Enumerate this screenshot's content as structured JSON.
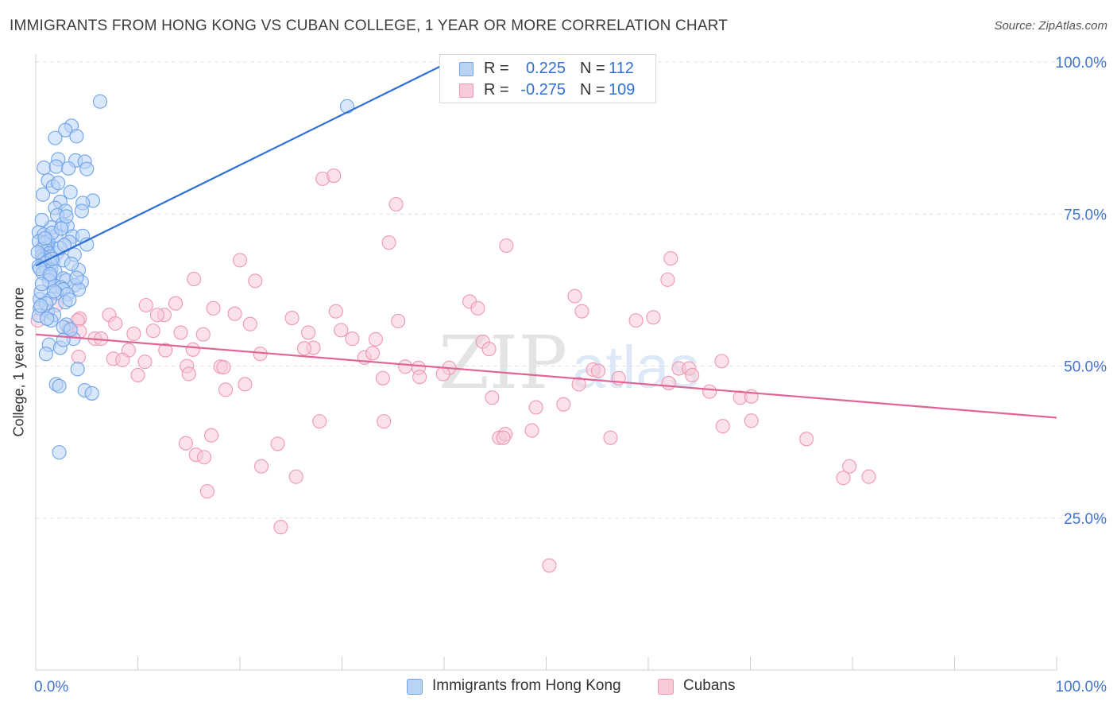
{
  "title": "IMMIGRANTS FROM HONG KONG VS CUBAN COLLEGE, 1 YEAR OR MORE CORRELATION CHART",
  "source": "Source: ZipAtlas.com",
  "watermark": {
    "zip": "ZIP",
    "atlas": "atlas"
  },
  "legend_top": {
    "rows": [
      {
        "r_label": "R =",
        "r_value": "0.225",
        "n_label": "N =",
        "n_value": "112",
        "color": "#6ea3e8",
        "fill": "#b9d3f5"
      },
      {
        "r_label": "R =",
        "r_value": "-0.275",
        "n_label": "N =",
        "n_value": "109",
        "color": "#ee97b1",
        "fill": "#f8cad8"
      }
    ]
  },
  "legend_bottom": {
    "series": [
      {
        "label": "Immigrants from Hong Kong",
        "color": "#6ea3e8",
        "fill": "#b9d3f5"
      },
      {
        "label": "Cubans",
        "color": "#ee97b1",
        "fill": "#f8cad8"
      }
    ]
  },
  "chart_data": {
    "type": "scatter",
    "title": "IMMIGRANTS FROM HONG KONG VS CUBAN COLLEGE, 1 YEAR OR MORE CORRELATION CHART",
    "xlabel": "",
    "ylabel": "College, 1 year or more",
    "xlim": [
      0,
      100
    ],
    "ylim": [
      0,
      100
    ],
    "x_tick_labels": [
      "0.0%",
      "100.0%"
    ],
    "y_tick_labels": [
      "25.0%",
      "50.0%",
      "75.0%",
      "100.0%"
    ],
    "y_ticks": [
      25,
      50,
      75,
      100
    ],
    "grid": true,
    "series": [
      {
        "name": "Immigrants from Hong Kong",
        "color": "#2f6fd6",
        "fill": "#b9d3f5",
        "stroke": "#6ea3e8",
        "trend": {
          "x1": 0,
          "y1": 66.5,
          "x2": 40.5,
          "y2": 100.0
        },
        "points": [
          [
            6.3,
            93.5
          ],
          [
            30.5,
            92.7
          ],
          [
            3.5,
            89.5
          ],
          [
            2.9,
            88.8
          ],
          [
            1.9,
            87.5
          ],
          [
            4.0,
            87.8
          ],
          [
            2.2,
            84.0
          ],
          [
            3.9,
            83.8
          ],
          [
            4.8,
            83.6
          ],
          [
            0.8,
            82.6
          ],
          [
            2.0,
            82.8
          ],
          [
            3.2,
            82.5
          ],
          [
            5.0,
            82.4
          ],
          [
            1.2,
            80.5
          ],
          [
            3.4,
            78.6
          ],
          [
            1.7,
            79.5
          ],
          [
            0.7,
            78.2
          ],
          [
            5.6,
            77.2
          ],
          [
            2.4,
            77.0
          ],
          [
            4.6,
            76.8
          ],
          [
            1.9,
            76.0
          ],
          [
            4.5,
            75.5
          ],
          [
            2.9,
            75.5
          ],
          [
            2.1,
            74.8
          ],
          [
            2.6,
            73.3
          ],
          [
            1.5,
            72.8
          ],
          [
            3.1,
            73.0
          ],
          [
            0.3,
            72.0
          ],
          [
            0.8,
            71.6
          ],
          [
            2.0,
            71.5
          ],
          [
            3.6,
            71.3
          ],
          [
            4.6,
            71.4
          ],
          [
            1.2,
            70.5
          ],
          [
            0.3,
            70.5
          ],
          [
            1.2,
            69.5
          ],
          [
            3.3,
            70.4
          ],
          [
            0.9,
            70.3
          ],
          [
            5.0,
            70.0
          ],
          [
            1.1,
            69.0
          ],
          [
            0.6,
            69.2
          ],
          [
            1.3,
            68.5
          ],
          [
            2.1,
            68.6
          ],
          [
            0.6,
            68.1
          ],
          [
            1.5,
            68.0
          ],
          [
            3.8,
            68.3
          ],
          [
            0.9,
            67.8
          ],
          [
            0.7,
            67.5
          ],
          [
            1.2,
            67.3
          ],
          [
            1.7,
            67.1
          ],
          [
            2.7,
            67.4
          ],
          [
            0.9,
            66.9
          ],
          [
            0.3,
            66.4
          ],
          [
            1.0,
            66.1
          ],
          [
            1.5,
            65.8
          ],
          [
            1.9,
            65.6
          ],
          [
            4.2,
            65.8
          ],
          [
            0.7,
            65.3
          ],
          [
            1.4,
            64.7
          ],
          [
            2.7,
            64.4
          ],
          [
            3.0,
            64.1
          ],
          [
            4.5,
            63.8
          ],
          [
            3.8,
            63.3
          ],
          [
            1.9,
            63.2
          ],
          [
            2.5,
            62.9
          ],
          [
            2.7,
            62.6
          ],
          [
            4.2,
            62.6
          ],
          [
            2.0,
            62.0
          ],
          [
            3.1,
            61.8
          ],
          [
            0.4,
            61.0
          ],
          [
            1.4,
            61.0
          ],
          [
            2.9,
            60.5
          ],
          [
            0.4,
            59.5
          ],
          [
            1.2,
            59.0
          ],
          [
            1.8,
            58.4
          ],
          [
            0.3,
            58.3
          ],
          [
            1.5,
            57.5
          ],
          [
            3.0,
            56.8
          ],
          [
            2.7,
            56.4
          ],
          [
            3.7,
            54.5
          ],
          [
            1.3,
            53.5
          ],
          [
            2.4,
            53.0
          ],
          [
            1.0,
            52.0
          ],
          [
            4.1,
            49.5
          ],
          [
            2.0,
            47.0
          ],
          [
            2.3,
            46.7
          ],
          [
            4.8,
            46.0
          ],
          [
            5.5,
            45.5
          ],
          [
            2.3,
            35.8
          ],
          [
            1.3,
            64.1
          ],
          [
            0.5,
            62.2
          ],
          [
            2.4,
            69.4
          ],
          [
            3.5,
            66.8
          ],
          [
            1.6,
            71.9
          ],
          [
            0.2,
            68.7
          ],
          [
            3.0,
            74.6
          ],
          [
            0.6,
            74.0
          ],
          [
            2.2,
            80.1
          ],
          [
            1.0,
            60.3
          ],
          [
            3.4,
            56.0
          ],
          [
            2.7,
            54.3
          ],
          [
            0.4,
            66.0
          ],
          [
            1.6,
            67.6
          ],
          [
            0.9,
            71.0
          ],
          [
            4.0,
            64.5
          ],
          [
            1.8,
            62.3
          ],
          [
            2.5,
            72.6
          ],
          [
            0.6,
            63.5
          ],
          [
            3.3,
            60.9
          ],
          [
            1.1,
            57.8
          ],
          [
            0.5,
            59.9
          ],
          [
            2.8,
            69.9
          ],
          [
            1.4,
            65.1
          ]
        ]
      },
      {
        "name": "Cubans",
        "color": "#e06596",
        "fill": "#f8cad8",
        "stroke": "#ee97b1",
        "trend": {
          "x1": 0,
          "y1": 55.2,
          "x2": 100,
          "y2": 41.5
        },
        "points": [
          [
            28.1,
            80.8
          ],
          [
            29.2,
            81.3
          ],
          [
            35.3,
            76.6
          ],
          [
            34.6,
            70.3
          ],
          [
            46.1,
            69.8
          ],
          [
            15.5,
            64.3
          ],
          [
            20.0,
            67.4
          ],
          [
            21.5,
            64.0
          ],
          [
            62.2,
            67.7
          ],
          [
            61.9,
            64.2
          ],
          [
            13.7,
            60.3
          ],
          [
            10.8,
            60.0
          ],
          [
            2.0,
            60.0
          ],
          [
            4.3,
            57.8
          ],
          [
            7.2,
            58.4
          ],
          [
            17.4,
            59.5
          ],
          [
            19.5,
            58.6
          ],
          [
            42.5,
            60.6
          ],
          [
            52.8,
            61.5
          ],
          [
            43.3,
            59.5
          ],
          [
            53.5,
            59.0
          ],
          [
            29.4,
            59.0
          ],
          [
            12.6,
            58.4
          ],
          [
            11.9,
            58.4
          ],
          [
            4.1,
            57.5
          ],
          [
            0.2,
            57.5
          ],
          [
            25.1,
            57.9
          ],
          [
            35.5,
            57.4
          ],
          [
            58.8,
            57.5
          ],
          [
            7.8,
            57.0
          ],
          [
            21.0,
            56.9
          ],
          [
            3.2,
            56.2
          ],
          [
            4.3,
            55.7
          ],
          [
            9.6,
            55.3
          ],
          [
            14.2,
            55.5
          ],
          [
            16.4,
            55.2
          ],
          [
            29.9,
            55.9
          ],
          [
            26.7,
            55.5
          ],
          [
            5.8,
            54.5
          ],
          [
            6.4,
            54.5
          ],
          [
            31.0,
            54.5
          ],
          [
            33.3,
            54.4
          ],
          [
            43.8,
            54.0
          ],
          [
            44.4,
            52.8
          ],
          [
            27.2,
            53.0
          ],
          [
            9.1,
            52.6
          ],
          [
            12.7,
            52.6
          ],
          [
            15.4,
            52.7
          ],
          [
            22.0,
            52.0
          ],
          [
            32.2,
            51.4
          ],
          [
            33.0,
            52.1
          ],
          [
            7.6,
            51.2
          ],
          [
            4.2,
            51.5
          ],
          [
            10.7,
            50.7
          ],
          [
            14.8,
            50.0
          ],
          [
            18.1,
            49.9
          ],
          [
            36.2,
            49.9
          ],
          [
            37.5,
            49.7
          ],
          [
            40.5,
            49.7
          ],
          [
            54.6,
            49.4
          ],
          [
            55.1,
            49.2
          ],
          [
            63.0,
            49.6
          ],
          [
            64.0,
            49.6
          ],
          [
            67.2,
            50.8
          ],
          [
            64.3,
            48.5
          ],
          [
            57.1,
            48.0
          ],
          [
            34.0,
            48.0
          ],
          [
            37.6,
            48.2
          ],
          [
            10.0,
            48.5
          ],
          [
            15.0,
            48.7
          ],
          [
            62.0,
            47.2
          ],
          [
            20.5,
            47.0
          ],
          [
            18.6,
            46.1
          ],
          [
            44.7,
            44.8
          ],
          [
            49.0,
            43.2
          ],
          [
            51.7,
            43.7
          ],
          [
            66.0,
            45.8
          ],
          [
            69.0,
            44.8
          ],
          [
            70.1,
            45.0
          ],
          [
            27.8,
            40.9
          ],
          [
            34.1,
            40.9
          ],
          [
            48.6,
            39.4
          ],
          [
            67.3,
            40.1
          ],
          [
            70.1,
            41.0
          ],
          [
            75.5,
            38.0
          ],
          [
            56.3,
            38.2
          ],
          [
            45.4,
            38.2
          ],
          [
            46.0,
            38.8
          ],
          [
            17.2,
            38.6
          ],
          [
            14.7,
            37.3
          ],
          [
            23.7,
            37.2
          ],
          [
            15.7,
            35.4
          ],
          [
            16.5,
            35.0
          ],
          [
            22.1,
            33.5
          ],
          [
            25.5,
            31.8
          ],
          [
            79.7,
            33.5
          ],
          [
            79.1,
            31.6
          ],
          [
            81.6,
            31.8
          ],
          [
            16.8,
            29.4
          ],
          [
            24.0,
            23.5
          ],
          [
            50.3,
            17.2
          ],
          [
            8.5,
            51.0
          ],
          [
            26.3,
            52.9
          ],
          [
            39.9,
            48.7
          ],
          [
            11.5,
            55.8
          ],
          [
            45.8,
            38.2
          ],
          [
            18.4,
            49.8
          ],
          [
            53.2,
            47.0
          ],
          [
            60.5,
            58.0
          ]
        ]
      }
    ]
  }
}
